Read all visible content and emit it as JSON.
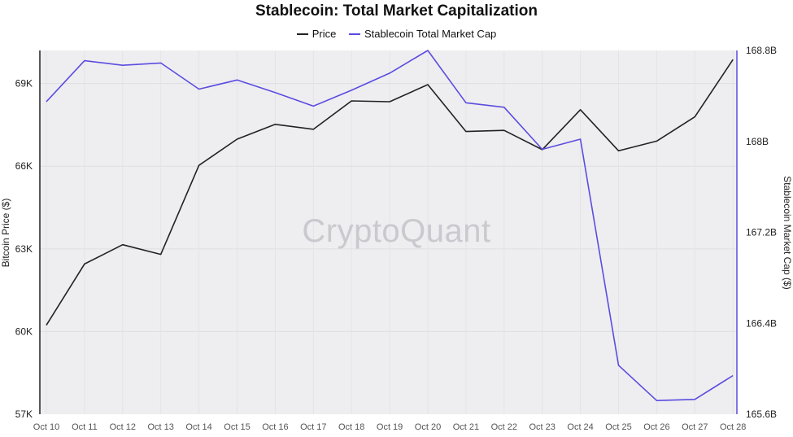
{
  "chart_data": {
    "type": "line",
    "title": "Stablecoin: Total Market Capitalization",
    "watermark": "CryptoQuant",
    "x": [
      "Oct 10",
      "Oct 11",
      "Oct 12",
      "Oct 13",
      "Oct 14",
      "Oct 15",
      "Oct 16",
      "Oct 17",
      "Oct 18",
      "Oct 19",
      "Oct 20",
      "Oct 21",
      "Oct 22",
      "Oct 23",
      "Oct 24",
      "Oct 25",
      "Oct 26",
      "Oct 27",
      "Oct 28"
    ],
    "y_left": {
      "label": "Bitcoin Price ($)",
      "ylim": [
        57000,
        70200
      ],
      "ticks": [
        57000,
        60000,
        63000,
        66000,
        69000
      ],
      "tick_labels": [
        "57K",
        "60K",
        "63K",
        "66K",
        "69K"
      ]
    },
    "y_right": {
      "label": "Stablecoin Market Cap ($)",
      "ylim": [
        165.6,
        168.8
      ],
      "ticks": [
        165.6,
        166.4,
        167.2,
        168.0,
        168.8
      ],
      "tick_labels": [
        "165.6B",
        "166.4B",
        "167.2B",
        "168B",
        "168.8B"
      ]
    },
    "series": [
      {
        "name": "Price",
        "axis": "left",
        "color": "#222222",
        "values": [
          60230,
          62450,
          63150,
          62800,
          66030,
          66980,
          67520,
          67340,
          68370,
          68340,
          68960,
          67260,
          67300,
          66600,
          68050,
          66560,
          66910,
          67790,
          69870
        ]
      },
      {
        "name": "Stablecoin Total Market Cap",
        "axis": "right",
        "color": "#5b4ce0",
        "values": [
          168.35,
          168.71,
          168.67,
          168.69,
          168.46,
          168.54,
          168.43,
          168.31,
          168.45,
          168.6,
          168.8,
          168.34,
          168.3,
          167.93,
          168.02,
          166.03,
          165.72,
          165.73,
          165.94
        ]
      }
    ],
    "legend": {
      "position": "top-center"
    },
    "grid": true,
    "background": "#eeeef0"
  }
}
